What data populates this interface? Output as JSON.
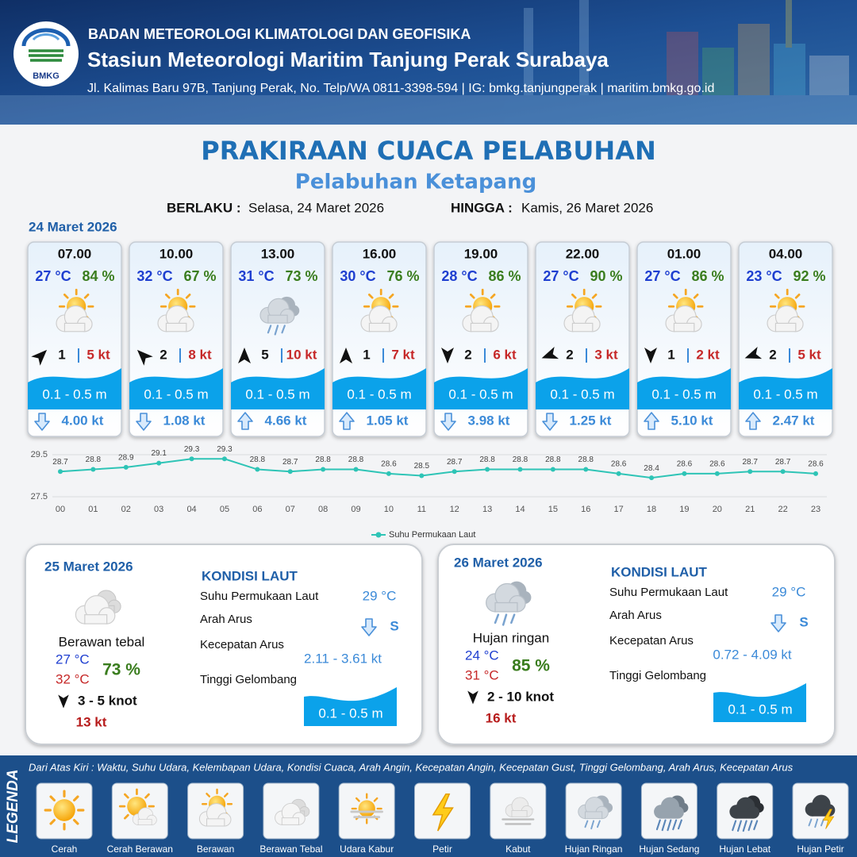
{
  "header": {
    "logo": "BMKG",
    "agency": "BADAN METEOROLOGI KLIMATOLOGI DAN GEOFISIKA",
    "station": "Stasiun Meteorologi Maritim Tanjung Perak Surabaya",
    "address": "Jl. Kalimas Baru 97B, Tanjung Perak, No. Telp/WA 0811-3398-594 | IG: bmkg.tanjungperak | maritim.bmkg.go.id"
  },
  "title": "PRAKIRAAN CUACA PELABUHAN",
  "subtitle": "Pelabuhan Ketapang",
  "validity": {
    "from_label": "BERLAKU :",
    "from": "Selasa, 24 Maret 2026",
    "until_label": "HINGGA :",
    "until": "Kamis, 26 Maret 2026"
  },
  "day1": {
    "date": "24 Maret 2026",
    "forecasts": [
      {
        "time": "07.00",
        "temperature": "27 °C",
        "humidity": "84 %",
        "wind_direction": 45,
        "wind_speed": "1",
        "gust": "5 kt",
        "wave": "0.1 - 0.5 m",
        "current_direction": 180,
        "current_speed": "4.00 kt"
      },
      {
        "time": "10.00",
        "temperature": "32 °C",
        "humidity": "67 %",
        "wind_direction": 315,
        "wind_speed": "2",
        "gust": "8 kt",
        "wave": "0.1 - 0.5 m",
        "current_direction": 180,
        "current_speed": "1.08 kt"
      },
      {
        "time": "13.00",
        "temperature": "31 °C",
        "humidity": "73 %",
        "wind_direction": 0,
        "wind_speed": "5",
        "gust": "10 kt",
        "wave": "0.1 - 0.5 m",
        "current_direction": 0,
        "current_speed": "4.66 kt"
      },
      {
        "time": "16.00",
        "temperature": "30 °C",
        "humidity": "76 %",
        "wind_direction": 0,
        "wind_speed": "1",
        "gust": "7 kt",
        "wave": "0.1 - 0.5 m",
        "current_direction": 0,
        "current_speed": "1.05 kt"
      },
      {
        "time": "19.00",
        "temperature": "28 °C",
        "humidity": "86 %",
        "wind_direction": 180,
        "wind_speed": "2",
        "gust": "6 kt",
        "wave": "0.1 - 0.5 m",
        "current_direction": 180,
        "current_speed": "3.98 kt"
      },
      {
        "time": "22.00",
        "temperature": "27 °C",
        "humidity": "90 %",
        "wind_direction": 250,
        "wind_speed": "2",
        "gust": "3 kt",
        "wave": "0.1 - 0.5 m",
        "current_direction": 180,
        "current_speed": "1.25 kt"
      },
      {
        "time": "01.00",
        "temperature": "27 °C",
        "humidity": "86 %",
        "wind_direction": 180,
        "wind_speed": "1",
        "gust": "2 kt",
        "wave": "0.1 - 0.5 m",
        "current_direction": 0,
        "current_speed": "5.10 kt"
      },
      {
        "time": "04.00",
        "temperature": "23 °C",
        "humidity": "92 %",
        "wind_direction": 250,
        "wind_speed": "2",
        "gust": "5 kt",
        "wave": "0.1 - 0.5 m",
        "current_direction": 0,
        "current_speed": "2.47 kt"
      }
    ]
  },
  "chart_data": {
    "type": "line",
    "categories": [
      "00",
      "01",
      "02",
      "03",
      "04",
      "05",
      "06",
      "07",
      "08",
      "09",
      "10",
      "11",
      "12",
      "13",
      "14",
      "15",
      "16",
      "17",
      "18",
      "19",
      "20",
      "21",
      "22",
      "23"
    ],
    "series": [
      {
        "name": "Suhu Permukaan Laut",
        "color": "#2ec4b6",
        "values": [
          28.7,
          28.8,
          28.9,
          29.1,
          29.3,
          29.3,
          28.8,
          28.7,
          28.8,
          28.8,
          28.6,
          28.5,
          28.7,
          28.8,
          28.8,
          28.8,
          28.8,
          28.6,
          28.4,
          28.6,
          28.6,
          28.7,
          28.7,
          28.6
        ]
      }
    ],
    "ylim": [
      27.5,
      29.5
    ],
    "yticks": [
      27.5,
      29.5
    ],
    "grid": true,
    "data_labels": true
  },
  "day2": {
    "date": "25 Maret 2026",
    "condition": "Berawan tebal",
    "temp_min": "27 °C",
    "temp_max": "32 °C",
    "humidity": "73 %",
    "wind_direction": 180,
    "wind": "3  - 5 knot",
    "gust": "13 kt",
    "sea_title": "KONDISI LAUT",
    "sea_labels": [
      "Suhu Permukaan Laut",
      "Arah Arus",
      "Kecepatan Arus",
      "Tinggi Gelombang"
    ],
    "sea_temperature": "29 °C",
    "current_direction": 180,
    "current_direction_label": "S",
    "current_speed": "2.11  - 3.61 kt",
    "wave": "0.1 - 0.5 m"
  },
  "day3": {
    "date": "26 Maret 2026",
    "condition": "Hujan ringan",
    "temp_min": "24 °C",
    "temp_max": "31 °C",
    "humidity": "85 %",
    "wind_direction": 180,
    "wind": "2 - 10 knot",
    "gust": "16 kt",
    "sea_title": "KONDISI LAUT",
    "sea_labels": [
      "Suhu Permukaan Laut",
      "Arah Arus",
      "Kecepatan Arus",
      "Tinggi Gelombang"
    ],
    "sea_temperature": "29 °C",
    "current_direction": 180,
    "current_direction_label": "S",
    "current_speed": "0.72 - 4.09 kt",
    "wave": "0.1 - 0.5 m"
  },
  "legend": {
    "title": "LEGENDA",
    "description": "Dari Atas Kiri : Waktu, Suhu Udara, Kelembapan Udara, Kondisi Cuaca, Arah Angin, Kecepatan Angin, Kecepatan Gust, Tinggi Gelombang, Arah Arus, Kecepatan Arus",
    "items": [
      "Cerah",
      "Cerah Berawan",
      "Berawan",
      "Berawan Tebal",
      "Udara Kabur",
      "Petir",
      "Kabut",
      "Hujan Ringan",
      "Hujan Sedang",
      "Hujan Lebat",
      "Hujan Petir"
    ]
  }
}
